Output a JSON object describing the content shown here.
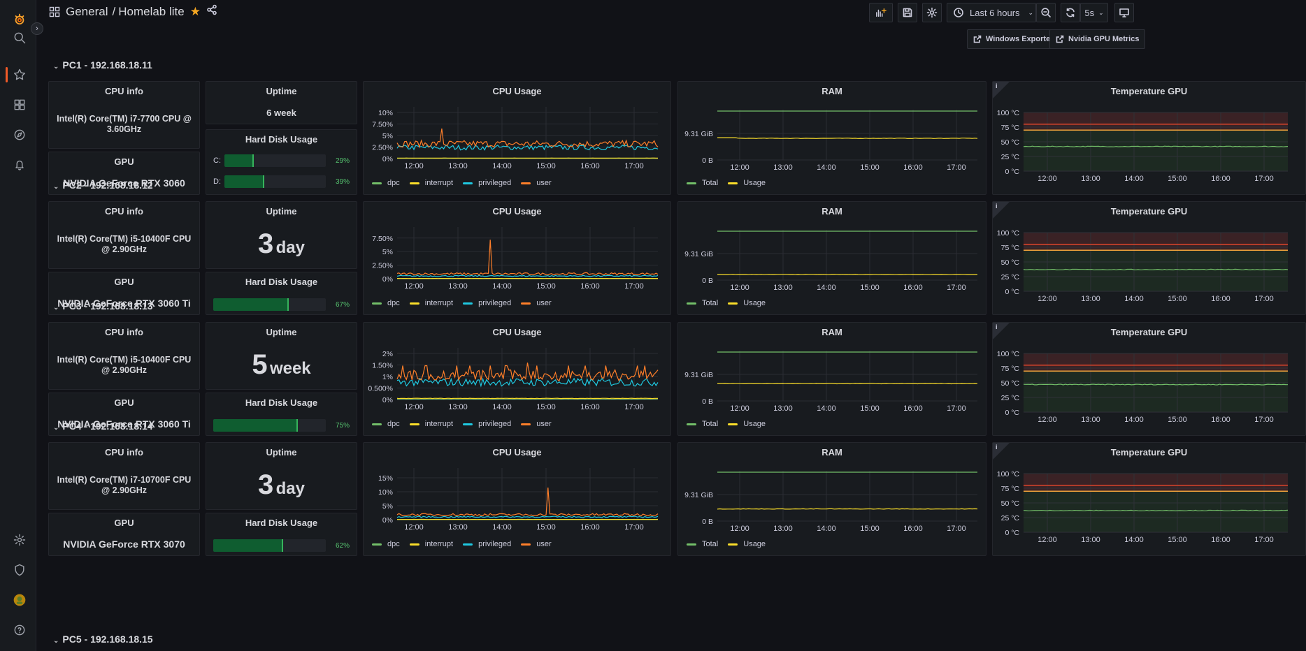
{
  "breadcrumb": {
    "folder": "General",
    "separator": "/",
    "dashboard": "Homelab lite"
  },
  "toolbar": {
    "time_range": "Last 6 hours",
    "refresh": "5s"
  },
  "links": [
    {
      "label": "Windows Exporter"
    },
    {
      "label": "Nvidia GPU Metrics"
    }
  ],
  "colors": {
    "accent": "#f05a28",
    "dpc": "#73bf69",
    "interrupt": "#fade2a",
    "privileged": "#1fc8e0",
    "user": "#ff7f2a",
    "total": "#73bf69",
    "usage": "#fade2a",
    "disk_fill": "#0f5d30"
  },
  "time_ticks": [
    "12:00",
    "13:00",
    "14:00",
    "15:00",
    "16:00",
    "17:00"
  ],
  "panel_titles": {
    "cpu_info": "CPU info",
    "gpu": "GPU",
    "uptime": "Uptime",
    "disk": "Hard Disk Usage",
    "cpu_usage": "CPU Usage",
    "ram": "RAM",
    "temp": "Temperature GPU"
  },
  "cpu_legend": [
    "dpc",
    "interrupt",
    "privileged",
    "user"
  ],
  "ram_legend": [
    "Total",
    "Usage"
  ],
  "temp_ticks": [
    "100 °C",
    "75 °C",
    "50 °C",
    "25 °C",
    "0 °C"
  ],
  "ram_ticks": [
    "9.31 GiB",
    "0 B"
  ],
  "rows": [
    {
      "title": "PC1 - 192.168.18.11",
      "cpu": "Intel(R) Core(TM) i7-7700 CPU @ 3.60GHz",
      "gpu": "NVIDIA GeForce RTX 3060",
      "uptime_num": "",
      "uptime_unit": "6 week",
      "uptime_small": true,
      "disks": [
        {
          "label": "C:",
          "pct_text": "29%",
          "pct": 29
        },
        {
          "label": "D:",
          "pct_text": "39%",
          "pct": 39
        }
      ],
      "cpu_ticks": [
        "10%",
        "7.50%",
        "5%",
        "2.50%",
        "0%"
      ],
      "cpu_max": 10,
      "cpu_levels": {
        "user": 3.2,
        "privileged": 2.4,
        "interrupt": 0.1,
        "dpc": 0.05
      },
      "cpu_spike": {
        "pos": 0.17,
        "value": 6.5
      },
      "ram_usage": 0.5,
      "temp": 42
    },
    {
      "title": "PC2 - 192.168.18.12",
      "cpu": "Intel(R) Core(TM) i5-10400F CPU @ 2.90GHz",
      "gpu": "NVIDIA GeForce RTX 3060 Ti",
      "uptime_num": "3",
      "uptime_unit": "day",
      "uptime_small": false,
      "disks": [
        {
          "label": "",
          "pct_text": "67%",
          "pct": 67
        }
      ],
      "cpu_ticks": [
        "7.50%",
        "5%",
        "2.50%",
        "0%"
      ],
      "cpu_max": 8.5,
      "cpu_levels": {
        "user": 0.9,
        "privileged": 0.5,
        "interrupt": 0.05,
        "dpc": 0.02
      },
      "cpu_spike": {
        "pos": 0.36,
        "value": 7.2
      },
      "ram_usage": 0.13,
      "temp": 37
    },
    {
      "title": "PC3 - 192.168.18.13",
      "cpu": "Intel(R) Core(TM) i5-10400F CPU @ 2.90GHz",
      "gpu": "NVIDIA GeForce RTX 3060 Ti",
      "uptime_num": "5",
      "uptime_unit": "week",
      "uptime_small": false,
      "disks": [
        {
          "label": "",
          "pct_text": "75%",
          "pct": 75
        }
      ],
      "cpu_ticks": [
        "2%",
        "1.50%",
        "1%",
        "0.500%",
        "0%"
      ],
      "cpu_max": 2,
      "cpu_levels": {
        "user": 1.05,
        "privileged": 0.75,
        "interrupt": 0.05,
        "dpc": 0.02
      },
      "cpu_spike": {
        "pos": 0.5,
        "value": 1.6
      },
      "ram_usage": 0.4,
      "temp": 47
    },
    {
      "title": "PC4 - 192.168.18.14",
      "cpu": "Intel(R) Core(TM) i7-10700F CPU @ 2.90GHz",
      "gpu": "NVIDIA GeForce RTX 3070",
      "uptime_num": "3",
      "uptime_unit": "day",
      "uptime_small": false,
      "disks": [
        {
          "label": "",
          "pct_text": "62%",
          "pct": 62
        }
      ],
      "cpu_ticks": [
        "15%",
        "10%",
        "5%",
        "0%"
      ],
      "cpu_max": 16.5,
      "cpu_levels": {
        "user": 1.8,
        "privileged": 1.0,
        "interrupt": 0.1,
        "dpc": 0.05
      },
      "cpu_spike": {
        "pos": 0.58,
        "value": 11.5
      },
      "ram_usage": 0.28,
      "temp": 37
    }
  ],
  "collapsed_row": {
    "title": "PC5 - 192.168.18.15"
  }
}
